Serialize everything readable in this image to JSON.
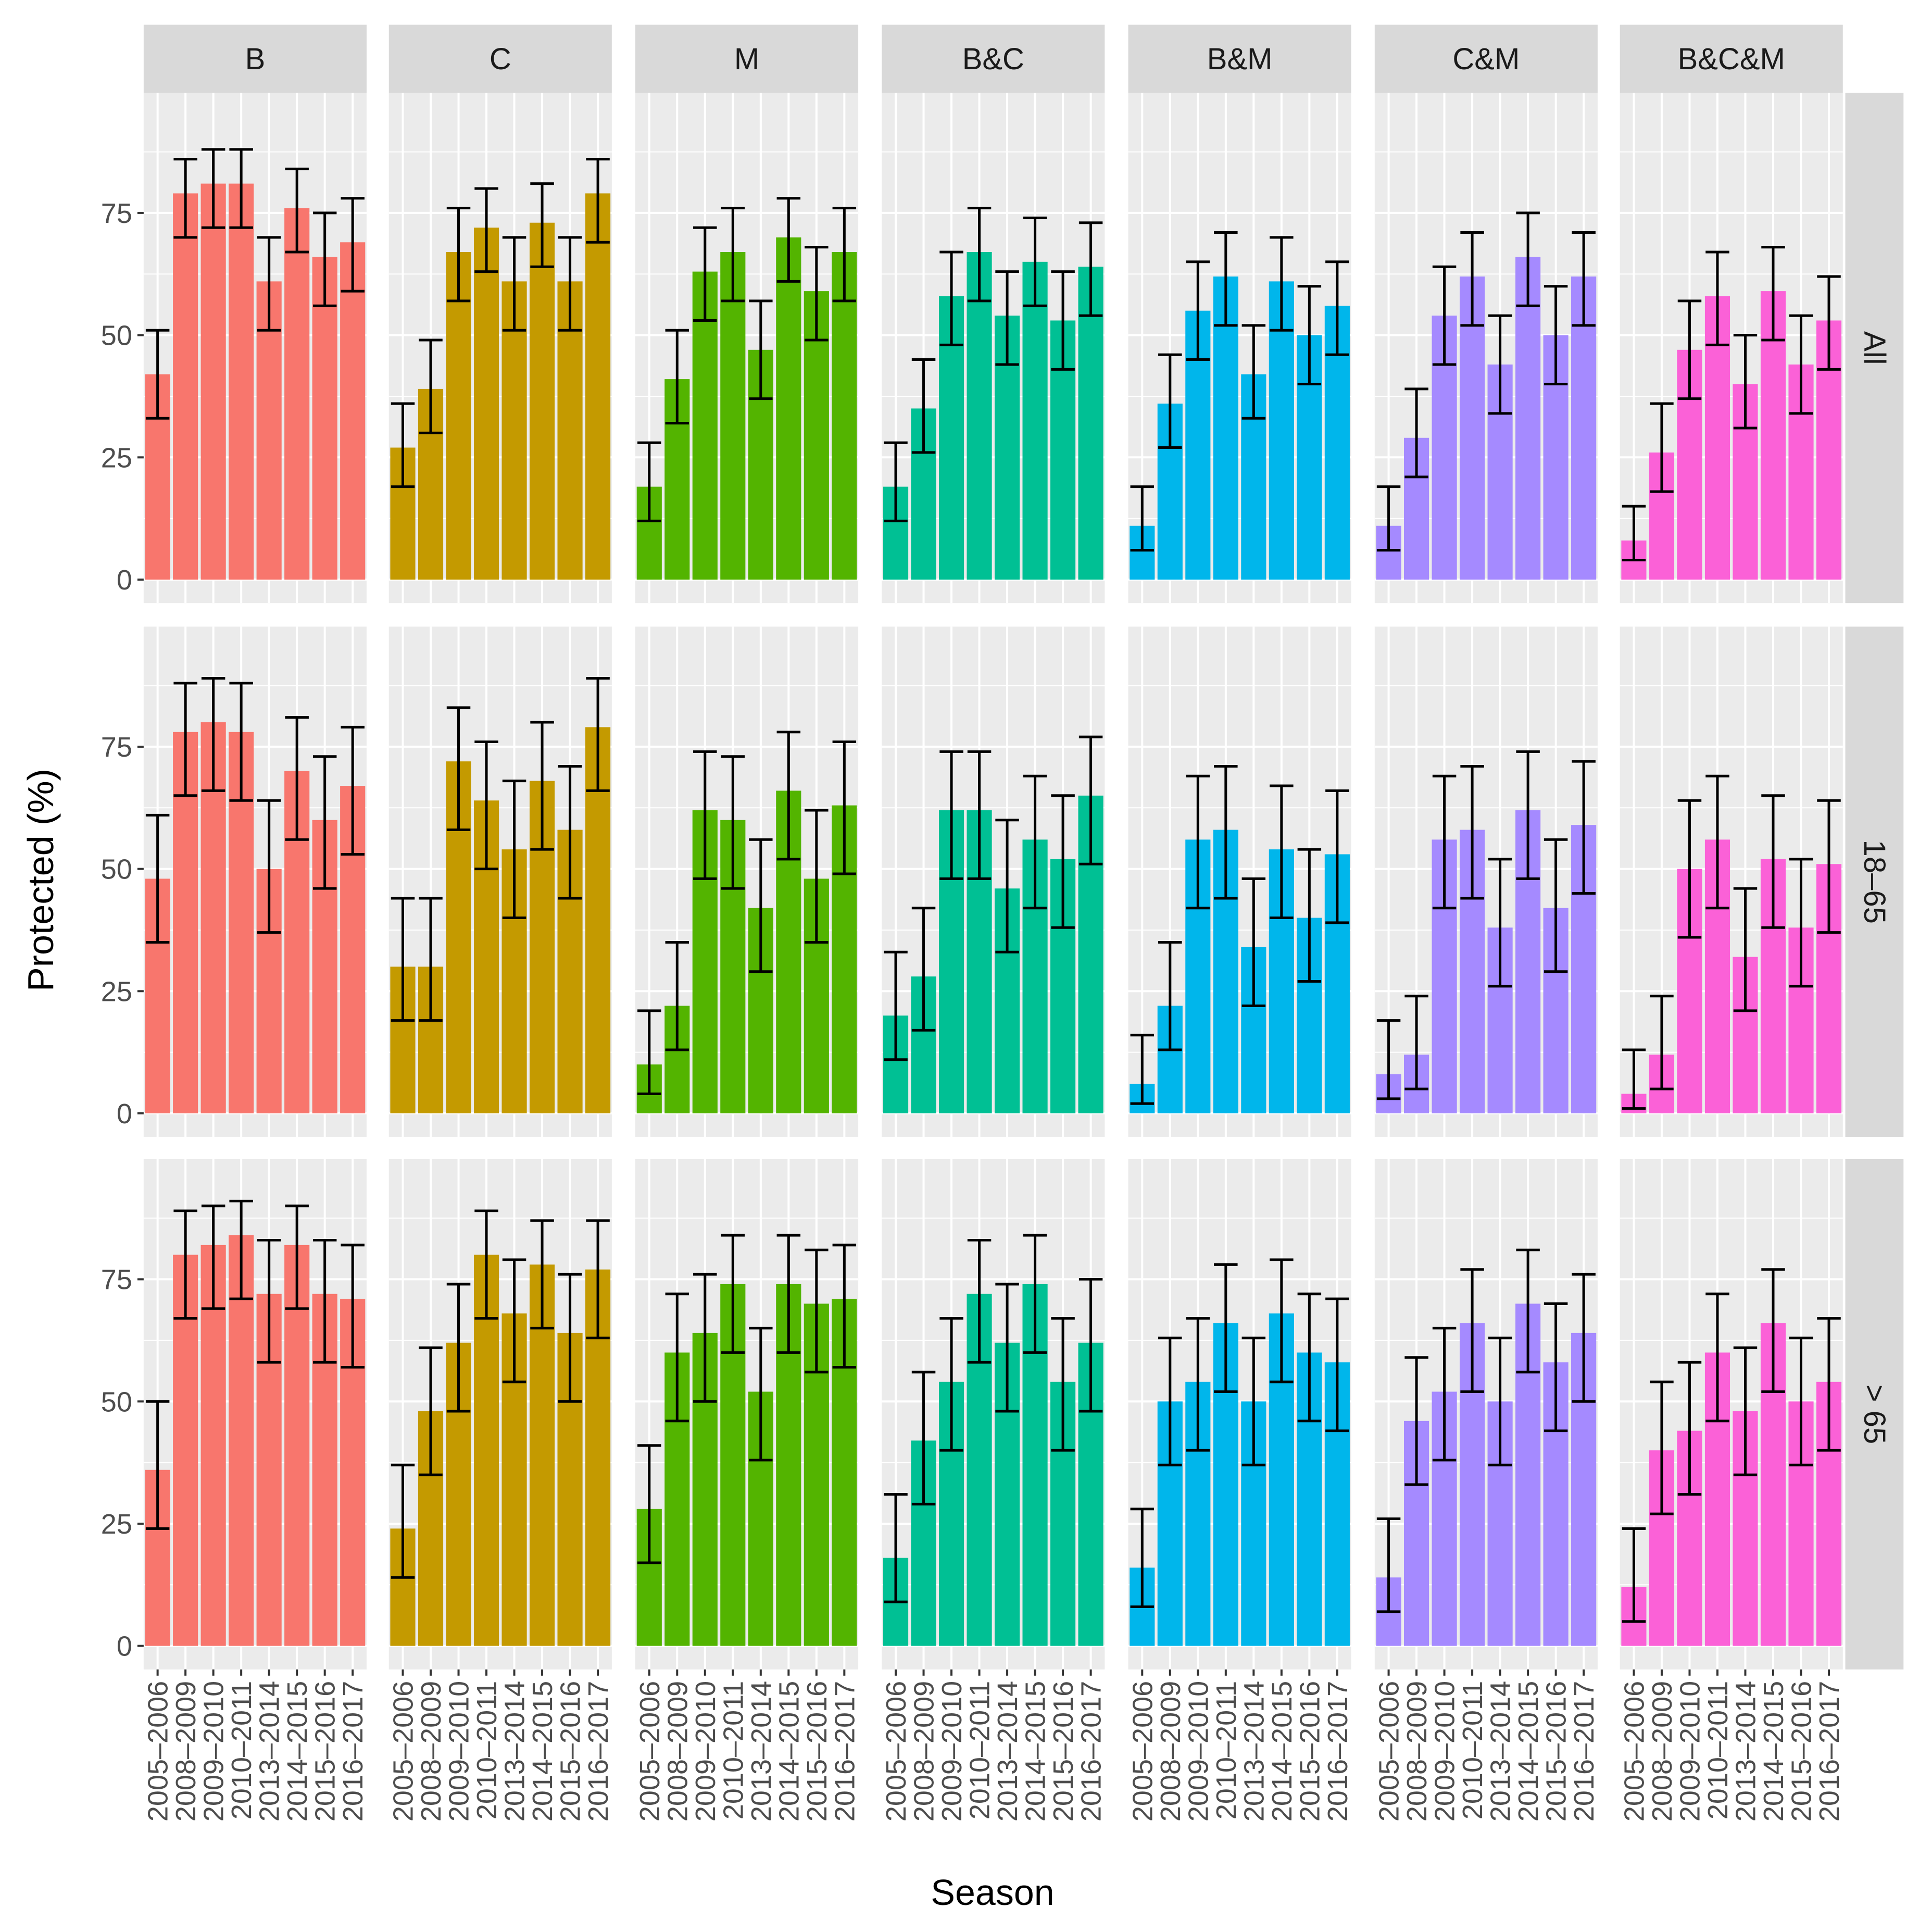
{
  "chart_data": {
    "type": "bar",
    "xlabel": "Season",
    "ylabel": "Protected (%)",
    "ylim": [
      0,
      95
    ],
    "yticks": [
      0,
      25,
      50,
      75
    ],
    "grid": true,
    "categories": [
      "2005–2006",
      "2008–2009",
      "2009–2010",
      "2010–2011",
      "2013–2014",
      "2014–2015",
      "2015–2016",
      "2016–2017"
    ],
    "columns": [
      "B",
      "C",
      "M",
      "B&C",
      "B&M",
      "C&M",
      "B&C&M"
    ],
    "column_colors": [
      "#F8766D",
      "#C49A00",
      "#53B400",
      "#00C094",
      "#00B6EB",
      "#A58AFF",
      "#FB61D7"
    ],
    "rows": [
      "All",
      "18–65",
      "> 65"
    ],
    "panels": [
      [
        {
          "values": [
            42,
            79,
            81,
            81,
            61,
            76,
            66,
            69
          ],
          "lower": [
            33,
            70,
            72,
            72,
            51,
            67,
            56,
            59
          ],
          "upper": [
            51,
            86,
            88,
            88,
            70,
            84,
            75,
            78
          ]
        },
        {
          "values": [
            27,
            39,
            67,
            72,
            61,
            73,
            61,
            79
          ],
          "lower": [
            19,
            30,
            57,
            63,
            51,
            64,
            51,
            69
          ],
          "upper": [
            36,
            49,
            76,
            80,
            70,
            81,
            70,
            86
          ]
        },
        {
          "values": [
            19,
            41,
            63,
            67,
            47,
            70,
            59,
            67
          ],
          "lower": [
            12,
            32,
            53,
            57,
            37,
            61,
            49,
            57
          ],
          "upper": [
            28,
            51,
            72,
            76,
            57,
            78,
            68,
            76
          ]
        },
        {
          "values": [
            19,
            35,
            58,
            67,
            54,
            65,
            53,
            64
          ],
          "lower": [
            12,
            26,
            48,
            57,
            44,
            56,
            43,
            54
          ],
          "upper": [
            28,
            45,
            67,
            76,
            63,
            74,
            63,
            73
          ]
        },
        {
          "values": [
            11,
            36,
            55,
            62,
            42,
            61,
            50,
            56
          ],
          "lower": [
            6,
            27,
            45,
            52,
            33,
            51,
            40,
            46
          ],
          "upper": [
            19,
            46,
            65,
            71,
            52,
            70,
            60,
            65
          ]
        },
        {
          "values": [
            11,
            29,
            54,
            62,
            44,
            66,
            50,
            62
          ],
          "lower": [
            6,
            21,
            44,
            52,
            34,
            56,
            40,
            52
          ],
          "upper": [
            19,
            39,
            64,
            71,
            54,
            75,
            60,
            71
          ]
        },
        {
          "values": [
            8,
            26,
            47,
            58,
            40,
            59,
            44,
            53
          ],
          "lower": [
            4,
            18,
            37,
            48,
            31,
            49,
            34,
            43
          ],
          "upper": [
            15,
            36,
            57,
            67,
            50,
            68,
            54,
            62
          ]
        }
      ],
      [
        {
          "values": [
            48,
            78,
            80,
            78,
            50,
            70,
            60,
            67
          ],
          "lower": [
            35,
            65,
            66,
            64,
            37,
            56,
            46,
            53
          ],
          "upper": [
            61,
            88,
            89,
            88,
            64,
            81,
            73,
            79
          ]
        },
        {
          "values": [
            30,
            30,
            72,
            64,
            54,
            68,
            58,
            79
          ],
          "lower": [
            19,
            19,
            58,
            50,
            40,
            54,
            44,
            66
          ],
          "upper": [
            44,
            44,
            83,
            76,
            68,
            80,
            71,
            89
          ]
        },
        {
          "values": [
            10,
            22,
            62,
            60,
            42,
            66,
            48,
            63
          ],
          "lower": [
            4,
            13,
            48,
            46,
            29,
            52,
            35,
            49
          ],
          "upper": [
            21,
            35,
            74,
            73,
            56,
            78,
            62,
            76
          ]
        },
        {
          "values": [
            20,
            28,
            62,
            62,
            46,
            56,
            52,
            65
          ],
          "lower": [
            11,
            17,
            48,
            48,
            33,
            42,
            38,
            51
          ],
          "upper": [
            33,
            42,
            74,
            74,
            60,
            69,
            65,
            77
          ]
        },
        {
          "values": [
            6,
            22,
            56,
            58,
            34,
            54,
            40,
            53
          ],
          "lower": [
            2,
            13,
            42,
            44,
            22,
            40,
            27,
            39
          ],
          "upper": [
            16,
            35,
            69,
            71,
            48,
            67,
            54,
            66
          ]
        },
        {
          "values": [
            8,
            12,
            56,
            58,
            38,
            62,
            42,
            59
          ],
          "lower": [
            3,
            5,
            42,
            44,
            26,
            48,
            29,
            45
          ],
          "upper": [
            19,
            24,
            69,
            71,
            52,
            74,
            56,
            72
          ]
        },
        {
          "values": [
            4,
            12,
            50,
            56,
            32,
            52,
            38,
            51
          ],
          "lower": [
            1,
            5,
            36,
            42,
            21,
            38,
            26,
            37
          ],
          "upper": [
            13,
            24,
            64,
            69,
            46,
            65,
            52,
            64
          ]
        }
      ],
      [
        {
          "values": [
            36,
            80,
            82,
            84,
            72,
            82,
            72,
            71
          ],
          "lower": [
            24,
            67,
            69,
            71,
            58,
            69,
            58,
            57
          ],
          "upper": [
            50,
            89,
            90,
            91,
            83,
            90,
            83,
            82
          ]
        },
        {
          "values": [
            24,
            48,
            62,
            80,
            68,
            78,
            64,
            77
          ],
          "lower": [
            14,
            35,
            48,
            67,
            54,
            65,
            50,
            63
          ],
          "upper": [
            37,
            61,
            74,
            89,
            79,
            87,
            76,
            87
          ]
        },
        {
          "values": [
            28,
            60,
            64,
            74,
            52,
            74,
            70,
            71
          ],
          "lower": [
            17,
            46,
            50,
            60,
            38,
            60,
            56,
            57
          ],
          "upper": [
            41,
            72,
            76,
            84,
            65,
            84,
            81,
            82
          ]
        },
        {
          "values": [
            18,
            42,
            54,
            72,
            62,
            74,
            54,
            62
          ],
          "lower": [
            9,
            29,
            40,
            58,
            48,
            60,
            40,
            48
          ],
          "upper": [
            31,
            56,
            67,
            83,
            74,
            84,
            67,
            75
          ]
        },
        {
          "values": [
            16,
            50,
            54,
            66,
            50,
            68,
            60,
            58
          ],
          "lower": [
            8,
            37,
            40,
            52,
            37,
            54,
            46,
            44
          ],
          "upper": [
            28,
            63,
            67,
            78,
            63,
            79,
            72,
            71
          ]
        },
        {
          "values": [
            14,
            46,
            52,
            66,
            50,
            70,
            58,
            64
          ],
          "lower": [
            7,
            33,
            38,
            52,
            37,
            56,
            44,
            50
          ],
          "upper": [
            26,
            59,
            65,
            77,
            63,
            81,
            70,
            76
          ]
        },
        {
          "values": [
            12,
            40,
            44,
            60,
            48,
            66,
            50,
            54
          ],
          "lower": [
            5,
            27,
            31,
            46,
            35,
            52,
            37,
            40
          ],
          "upper": [
            24,
            54,
            58,
            72,
            61,
            77,
            63,
            67
          ]
        }
      ]
    ]
  }
}
